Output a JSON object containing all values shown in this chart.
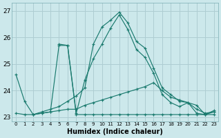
{
  "title": "",
  "xlabel": "Humidex (Indice chaleur)",
  "ylabel": "",
  "xlim": [
    -0.5,
    23.5
  ],
  "ylim": [
    22.85,
    27.3
  ],
  "yticks": [
    23,
    24,
    25,
    26,
    27
  ],
  "xticks": [
    0,
    1,
    2,
    3,
    4,
    5,
    6,
    7,
    8,
    9,
    10,
    11,
    12,
    13,
    14,
    15,
    16,
    17,
    18,
    19,
    20,
    21,
    22,
    23
  ],
  "background_color": "#cce8eb",
  "grid_color": "#aecdd2",
  "line_color": "#1a7a6e",
  "lines": [
    {
      "x": [
        0,
        1,
        2,
        3,
        4,
        5,
        6,
        7,
        8,
        9,
        10,
        11,
        12,
        13,
        14,
        15,
        16,
        17,
        18,
        19,
        20,
        21,
        22,
        23
      ],
      "y": [
        24.6,
        23.6,
        23.1,
        23.2,
        23.3,
        23.4,
        23.6,
        23.8,
        24.1,
        25.75,
        26.4,
        26.65,
        26.95,
        26.55,
        25.85,
        25.6,
        24.85,
        24.1,
        23.85,
        23.6,
        23.55,
        23.15,
        23.1,
        23.25
      ]
    },
    {
      "x": [
        0,
        1,
        2,
        3,
        4,
        5,
        6,
        7,
        8,
        9,
        10,
        11,
        12,
        13,
        14,
        15,
        16,
        17,
        18,
        19,
        20,
        21,
        22,
        23
      ],
      "y": [
        23.15,
        23.1,
        23.1,
        23.15,
        23.2,
        25.7,
        25.7,
        23.1,
        23.1,
        23.1,
        23.1,
        23.1,
        23.1,
        23.1,
        23.1,
        23.1,
        23.1,
        23.1,
        23.1,
        23.1,
        23.1,
        23.1,
        23.1,
        23.1
      ]
    },
    {
      "x": [
        5,
        6,
        7,
        8,
        9,
        10,
        11,
        12,
        13,
        14,
        15,
        16,
        17,
        18,
        19,
        20,
        21,
        22,
        23
      ],
      "y": [
        25.75,
        25.7,
        23.15,
        24.4,
        25.2,
        25.75,
        26.35,
        26.85,
        26.3,
        25.55,
        25.25,
        24.65,
        23.85,
        23.55,
        23.4,
        23.55,
        23.45,
        23.1,
        23.2
      ]
    },
    {
      "x": [
        2,
        3,
        4,
        5,
        6,
        7,
        8,
        9,
        10,
        11,
        12,
        13,
        14,
        15,
        16,
        17,
        18,
        19,
        20,
        21,
        22,
        23
      ],
      "y": [
        23.1,
        23.15,
        23.2,
        23.25,
        23.3,
        23.3,
        23.45,
        23.55,
        23.65,
        23.75,
        23.85,
        23.95,
        24.05,
        24.15,
        24.3,
        24.0,
        23.75,
        23.65,
        23.55,
        23.3,
        23.15,
        23.2
      ]
    }
  ]
}
